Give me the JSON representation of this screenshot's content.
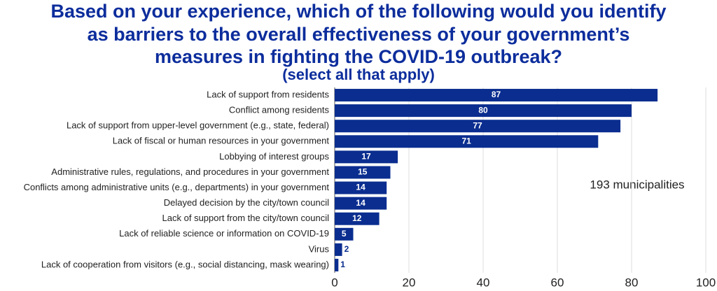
{
  "chart_data": {
    "type": "bar",
    "orientation": "horizontal",
    "title": [
      "Based on your experience, which of the following would you identify",
      "as barriers to the overall effectiveness of your government’s",
      "measures in fighting the COVID-19 outbreak?"
    ],
    "subtitle": "(select all that apply)",
    "annotation": "193 municipalities",
    "categories": [
      "Lack of support from residents",
      "Conflict among residents",
      "Lack of support from upper-level government (e.g., state, federal)",
      "Lack of fiscal or human resources in your government",
      "Lobbying of interest groups",
      "Administrative rules, regulations, and procedures in your government",
      "Conflicts among administrative units (e.g., departments) in your government",
      "Delayed decision by the city/town council",
      "Lack of support from the city/town council",
      "Lack of reliable science or information on COVID-19",
      "Virus",
      "Lack of cooperation from visitors (e.g., social distancing, mask wearing)"
    ],
    "values": [
      87,
      80,
      77,
      71,
      17,
      15,
      14,
      14,
      12,
      5,
      2,
      1
    ],
    "color": "#0a2d8f",
    "xlim": [
      0,
      100
    ],
    "xticks": [
      0,
      20,
      40,
      60,
      80,
      100
    ],
    "grid": true
  }
}
